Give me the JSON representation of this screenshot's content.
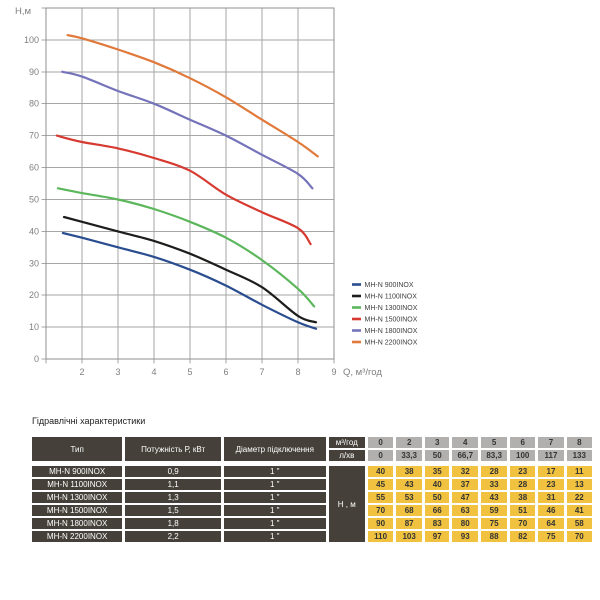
{
  "chart_data": {
    "type": "line",
    "title": "",
    "xlabel": "Q, м³/год",
    "ylabel": "Н,м",
    "xlim": [
      1,
      9
    ],
    "ylim": [
      0,
      110
    ],
    "x_ticks": [
      2,
      3,
      4,
      5,
      6,
      7,
      8,
      9
    ],
    "y_ticks": [
      0,
      10,
      20,
      30,
      40,
      50,
      60,
      70,
      80,
      90,
      100
    ],
    "grid": true,
    "legend_position": "right-bottom",
    "colors": {
      "grid": "#a6a6a6",
      "border": "#8f8f8f",
      "tick_text": "#7f7f7f",
      "legend_text": "#3d3d3d"
    },
    "flow_q_m3h": [
      0,
      2,
      3,
      4,
      5,
      6,
      7,
      8
    ],
    "series": [
      {
        "name": "MH-N 900INOX",
        "color": "#2a4d8f",
        "head_H_m": [
          40,
          38,
          35,
          32,
          28,
          23,
          17,
          11
        ],
        "plot_points": [
          [
            1.47,
            39.5
          ],
          [
            2,
            38
          ],
          [
            3,
            35
          ],
          [
            4,
            32
          ],
          [
            5,
            28
          ],
          [
            6,
            23
          ],
          [
            7,
            17
          ],
          [
            8,
            11.5
          ],
          [
            8.5,
            9.5
          ]
        ]
      },
      {
        "name": "MH-N 1100INOX",
        "color": "#1d1d1b",
        "head_H_m": [
          45,
          43,
          40,
          37,
          33,
          28,
          23,
          13
        ],
        "plot_points": [
          [
            1.5,
            44.5
          ],
          [
            2,
            43
          ],
          [
            3,
            40
          ],
          [
            4,
            37
          ],
          [
            5,
            33
          ],
          [
            6,
            28
          ],
          [
            7,
            22.5
          ],
          [
            8,
            13.5
          ],
          [
            8.5,
            11.5
          ]
        ]
      },
      {
        "name": "MH-N 1300INOX",
        "color": "#5cb75c",
        "head_H_m": [
          55,
          53,
          50,
          47,
          43,
          38,
          31,
          22
        ],
        "plot_points": [
          [
            1.33,
            53.5
          ],
          [
            2,
            52
          ],
          [
            3,
            50
          ],
          [
            4,
            47
          ],
          [
            5,
            43
          ],
          [
            6,
            38
          ],
          [
            7,
            31
          ],
          [
            8,
            22
          ],
          [
            8.45,
            16.5
          ]
        ]
      },
      {
        "name": "MH-N 1500INOX",
        "color": "#d63a30",
        "head_H_m": [
          70,
          68,
          66,
          63,
          59,
          51,
          46,
          41
        ],
        "plot_points": [
          [
            1.3,
            70
          ],
          [
            2,
            68
          ],
          [
            3,
            66
          ],
          [
            4,
            63
          ],
          [
            5,
            59
          ],
          [
            6,
            51.5
          ],
          [
            7,
            46
          ],
          [
            8,
            41
          ],
          [
            8.35,
            36
          ]
        ]
      },
      {
        "name": "MH-N 1800INOX",
        "color": "#7573b9",
        "head_H_m": [
          90,
          87,
          83,
          80,
          75,
          70,
          64,
          58
        ],
        "plot_points": [
          [
            1.45,
            90
          ],
          [
            2,
            88.5
          ],
          [
            3,
            84
          ],
          [
            4,
            80
          ],
          [
            5,
            75
          ],
          [
            6,
            70
          ],
          [
            7,
            64
          ],
          [
            8,
            58
          ],
          [
            8.4,
            53.5
          ]
        ]
      },
      {
        "name": "MH-N 2200INOX",
        "color": "#e0793a",
        "head_H_m": [
          110,
          103,
          97,
          93,
          88,
          82,
          75,
          70
        ],
        "plot_points": [
          [
            1.6,
            101.5
          ],
          [
            2,
            100.5
          ],
          [
            3,
            97
          ],
          [
            4,
            93
          ],
          [
            5,
            88
          ],
          [
            6,
            82
          ],
          [
            7,
            75
          ],
          [
            8,
            68
          ],
          [
            8.55,
            63.5
          ]
        ]
      }
    ]
  },
  "hydraulics_table": {
    "title": "Гідравлічні характеристики",
    "col_headers": {
      "type": "Тип",
      "power": "Потужність Р, кВт",
      "diameter": "Діаметр підключення",
      "flow_unit_1": "м³/год",
      "flow_unit_2": "л/хв",
      "head_label": "Н , м"
    },
    "flow_m3h": [
      "0",
      "2",
      "3",
      "4",
      "5",
      "6",
      "7",
      "8"
    ],
    "flow_lmin": [
      "0",
      "33,3",
      "50",
      "66,7",
      "83,3",
      "100",
      "117",
      "133"
    ],
    "rows": [
      {
        "type": "MH-N 900INOX",
        "power": "0,9",
        "diameter": "1 \"",
        "head": [
          "40",
          "38",
          "35",
          "32",
          "28",
          "23",
          "17",
          "11"
        ]
      },
      {
        "type": "MH-N 1100INOX",
        "power": "1,1",
        "diameter": "1 \"",
        "head": [
          "45",
          "43",
          "40",
          "37",
          "33",
          "28",
          "23",
          "13"
        ]
      },
      {
        "type": "MH-N 1300INOX",
        "power": "1,3",
        "diameter": "1 \"",
        "head": [
          "55",
          "53",
          "50",
          "47",
          "43",
          "38",
          "31",
          "22"
        ]
      },
      {
        "type": "MH-N 1500INOX",
        "power": "1,5",
        "diameter": "1 \"",
        "head": [
          "70",
          "68",
          "66",
          "63",
          "59",
          "51",
          "46",
          "41"
        ]
      },
      {
        "type": "MH-N 1800INOX",
        "power": "1,8",
        "diameter": "1 \"",
        "head": [
          "90",
          "87",
          "83",
          "80",
          "75",
          "70",
          "64",
          "58"
        ]
      },
      {
        "type": "MH-N 2200INOX",
        "power": "2,2",
        "diameter": "1 \"",
        "head": [
          "110",
          "103",
          "97",
          "93",
          "88",
          "82",
          "75",
          "70"
        ]
      }
    ]
  }
}
